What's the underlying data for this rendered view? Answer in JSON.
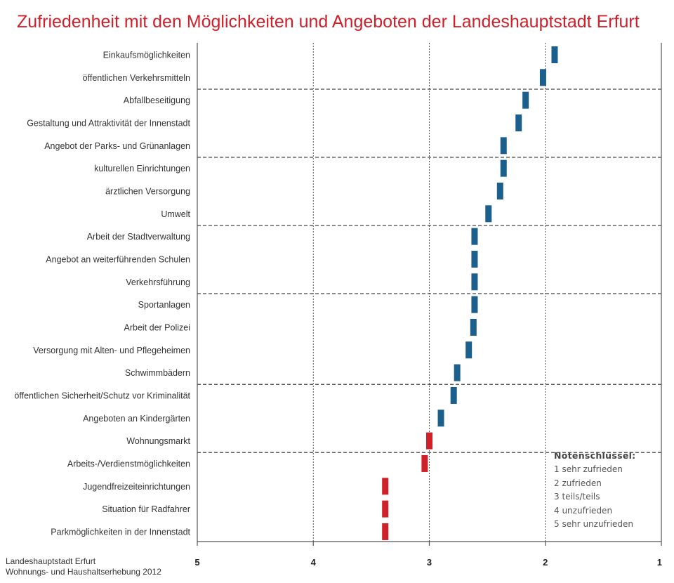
{
  "title": "Zufriedenheit mit den Möglichkeiten und Angeboten der Landeshauptstadt Erfurt",
  "colors": {
    "title": "#d0202a",
    "blue": "#1b5f8c",
    "red": "#d0202a",
    "axis": "#555555",
    "grid": "#555555"
  },
  "chart_data": {
    "type": "scatter",
    "title": "Zufriedenheit mit den Möglichkeiten und Angeboten der Landeshauptstadt Erfurt",
    "xlabel": "",
    "ylabel": "",
    "xlim": [
      5,
      1
    ],
    "x_ticks": [
      "5",
      "4",
      "3",
      "2",
      "1"
    ],
    "x_tick_values": [
      5,
      4,
      3,
      2,
      1
    ],
    "grid": true,
    "legend_position": "bottom-right",
    "categories": [
      "Einkaufsmöglichkeiten",
      "öffentlichen Verkehrsmitteln",
      "Abfallbeseitigung",
      "Gestaltung und Attraktivität der Innenstadt",
      "Angebot der Parks- und Grünanlagen",
      "kulturellen Einrichtungen",
      "ärztlichen Versorgung",
      "Umwelt",
      "Arbeit der Stadtverwaltung",
      "Angebot an weiterführenden Schulen",
      "Verkehrsführung",
      "Sportanlagen",
      "Arbeit der Polizei",
      "Versorgung mit Alten- und Pflegeheimen",
      "Schwimmbädern",
      "öffentlichen Sicherheit/Schutz vor Kriminalität",
      "Angeboten an Kindergärten",
      "Wohnungsmarkt",
      "Arbeits-/Verdienstmöglichkeiten",
      "Jugendfreizeiteinrichtungen",
      "Situation für Radfahrer",
      "Parkmöglichkeiten in der Innenstadt"
    ],
    "values": [
      1.92,
      2.02,
      2.17,
      2.23,
      2.36,
      2.36,
      2.39,
      2.49,
      2.61,
      2.61,
      2.61,
      2.61,
      2.62,
      2.66,
      2.76,
      2.79,
      2.9,
      3.0,
      3.04,
      3.38,
      3.38,
      3.38
    ],
    "colors": [
      "blue",
      "blue",
      "blue",
      "blue",
      "blue",
      "blue",
      "blue",
      "blue",
      "blue",
      "blue",
      "blue",
      "blue",
      "blue",
      "blue",
      "blue",
      "blue",
      "blue",
      "red",
      "red",
      "red",
      "red",
      "red"
    ],
    "group_separators_after": [
      1,
      4,
      7,
      10,
      14,
      17
    ]
  },
  "legend": {
    "title": "Notenschlüssel:",
    "items": [
      "1  sehr zufrieden",
      "2  zufrieden",
      "3  teils/teils",
      "4  unzufrieden",
      "5  sehr unzufrieden"
    ]
  },
  "source": {
    "line1": "Landeshauptstadt Erfurt",
    "line2": "Wohnungs- und Haushaltserhebung 2012"
  }
}
